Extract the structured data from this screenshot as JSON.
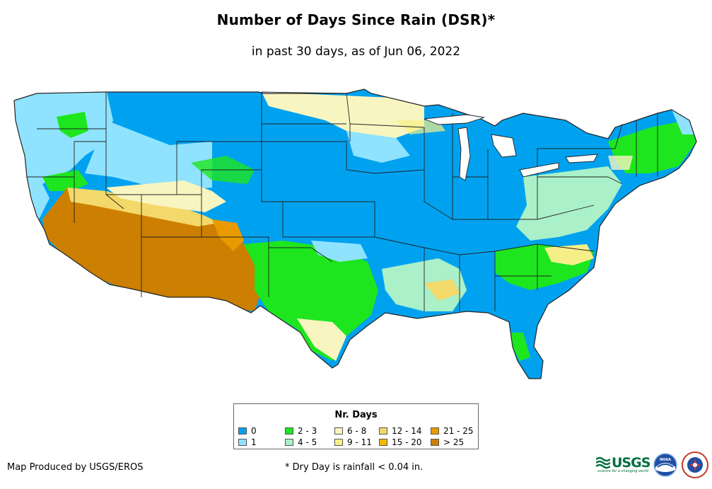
{
  "header": {
    "title": "Number of Days Since Rain (DSR)*",
    "subtitle": "in past 30 days, as of Jun 06, 2022"
  },
  "map": {
    "region": "Contiguous United States",
    "colors": {
      "d0": "#00a2f0",
      "d1": "#8fe3ff",
      "d2_3": "#1ee61e",
      "d4_5": "#aaf0c8",
      "d6_8": "#f8f5c0",
      "d9_11": "#f6ef88",
      "d12_14": "#f3d86a",
      "d15_20": "#f2b800",
      "d21_25": "#e99a00",
      "d25_plus": "#cc7f00",
      "state_border": "#222222"
    }
  },
  "legend": {
    "title": "Nr. Days",
    "items": [
      {
        "label": "0",
        "color": "#00a2f0"
      },
      {
        "label": "1",
        "color": "#8fe3ff"
      },
      {
        "label": "2 - 3",
        "color": "#1ee61e"
      },
      {
        "label": "4 - 5",
        "color": "#aaf0c8"
      },
      {
        "label": "6 - 8",
        "color": "#f8f5c0"
      },
      {
        "label": "9 - 11",
        "color": "#f6ef88"
      },
      {
        "label": "12 - 14",
        "color": "#f3d86a"
      },
      {
        "label": "15 - 20",
        "color": "#f2b800"
      },
      {
        "label": "21 - 25",
        "color": "#e99a00"
      },
      {
        "label": "> 25",
        "color": "#cc7f00"
      }
    ]
  },
  "footer": {
    "credit": "Map Produced by USGS/EROS",
    "footnote": "* Dry Day is rainfall < 0.04 in.",
    "logos": {
      "usgs": {
        "text": "USGS",
        "tagline": "science for a changing world"
      },
      "noaa": {
        "text": "NOAA"
      },
      "nws": {
        "text": "NATIONAL WEATHER SERVICE"
      }
    }
  }
}
